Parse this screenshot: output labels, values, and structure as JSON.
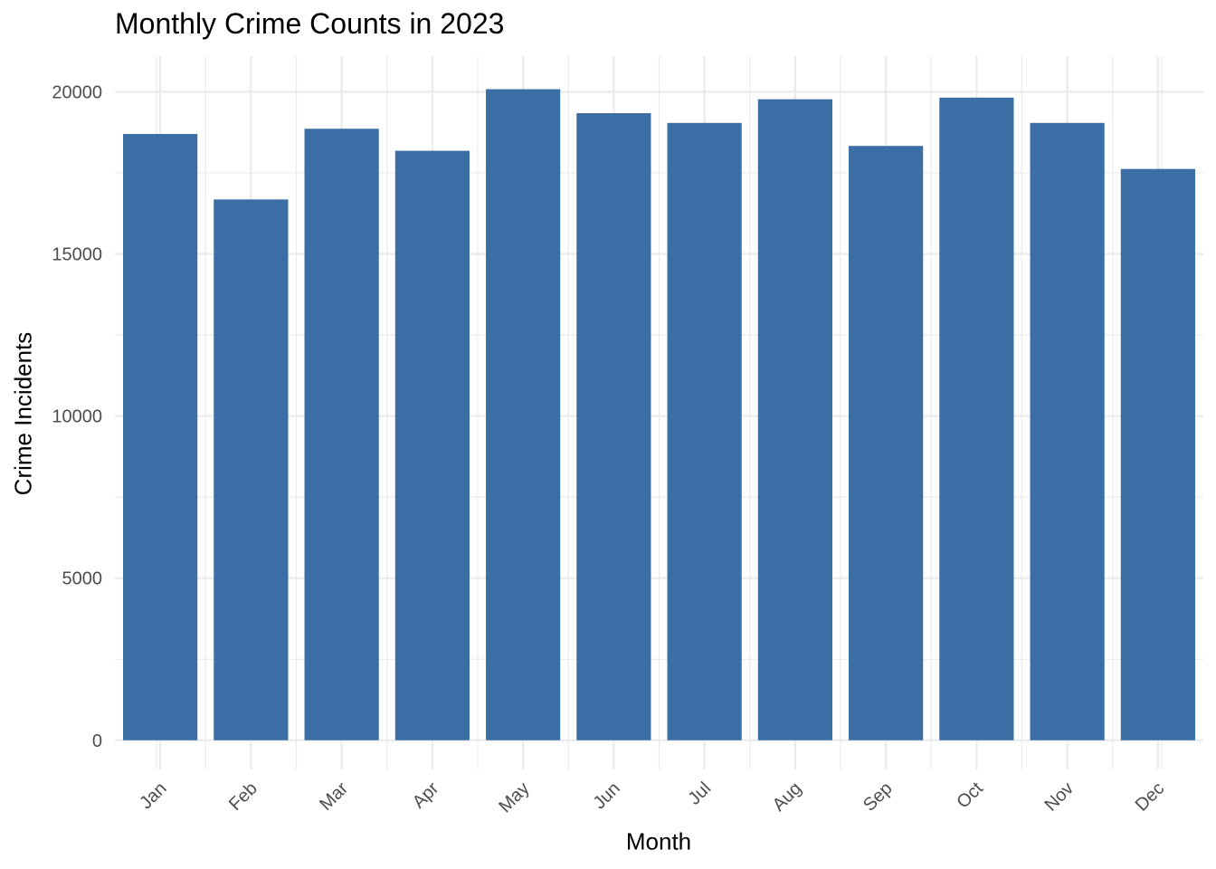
{
  "chart_data": {
    "type": "bar",
    "title": "Monthly Crime Counts in 2023",
    "xlabel": "Month",
    "ylabel": "Crime Incidents",
    "categories": [
      "Jan",
      "Feb",
      "Mar",
      "Apr",
      "May",
      "Jun",
      "Jul",
      "Aug",
      "Sep",
      "Oct",
      "Nov",
      "Dec"
    ],
    "values": [
      18700,
      16680,
      18860,
      18180,
      20080,
      19340,
      19040,
      19770,
      18330,
      19820,
      19040,
      17620
    ],
    "ylim": [
      -900,
      21100
    ],
    "yticks": [
      0,
      5000,
      10000,
      15000,
      20000
    ],
    "ytick_labels": [
      "0",
      "5000",
      "10000",
      "15000",
      "20000"
    ],
    "grid": true,
    "bar_color": "#3A6EA5",
    "grid_color": "#EBEBEB"
  }
}
